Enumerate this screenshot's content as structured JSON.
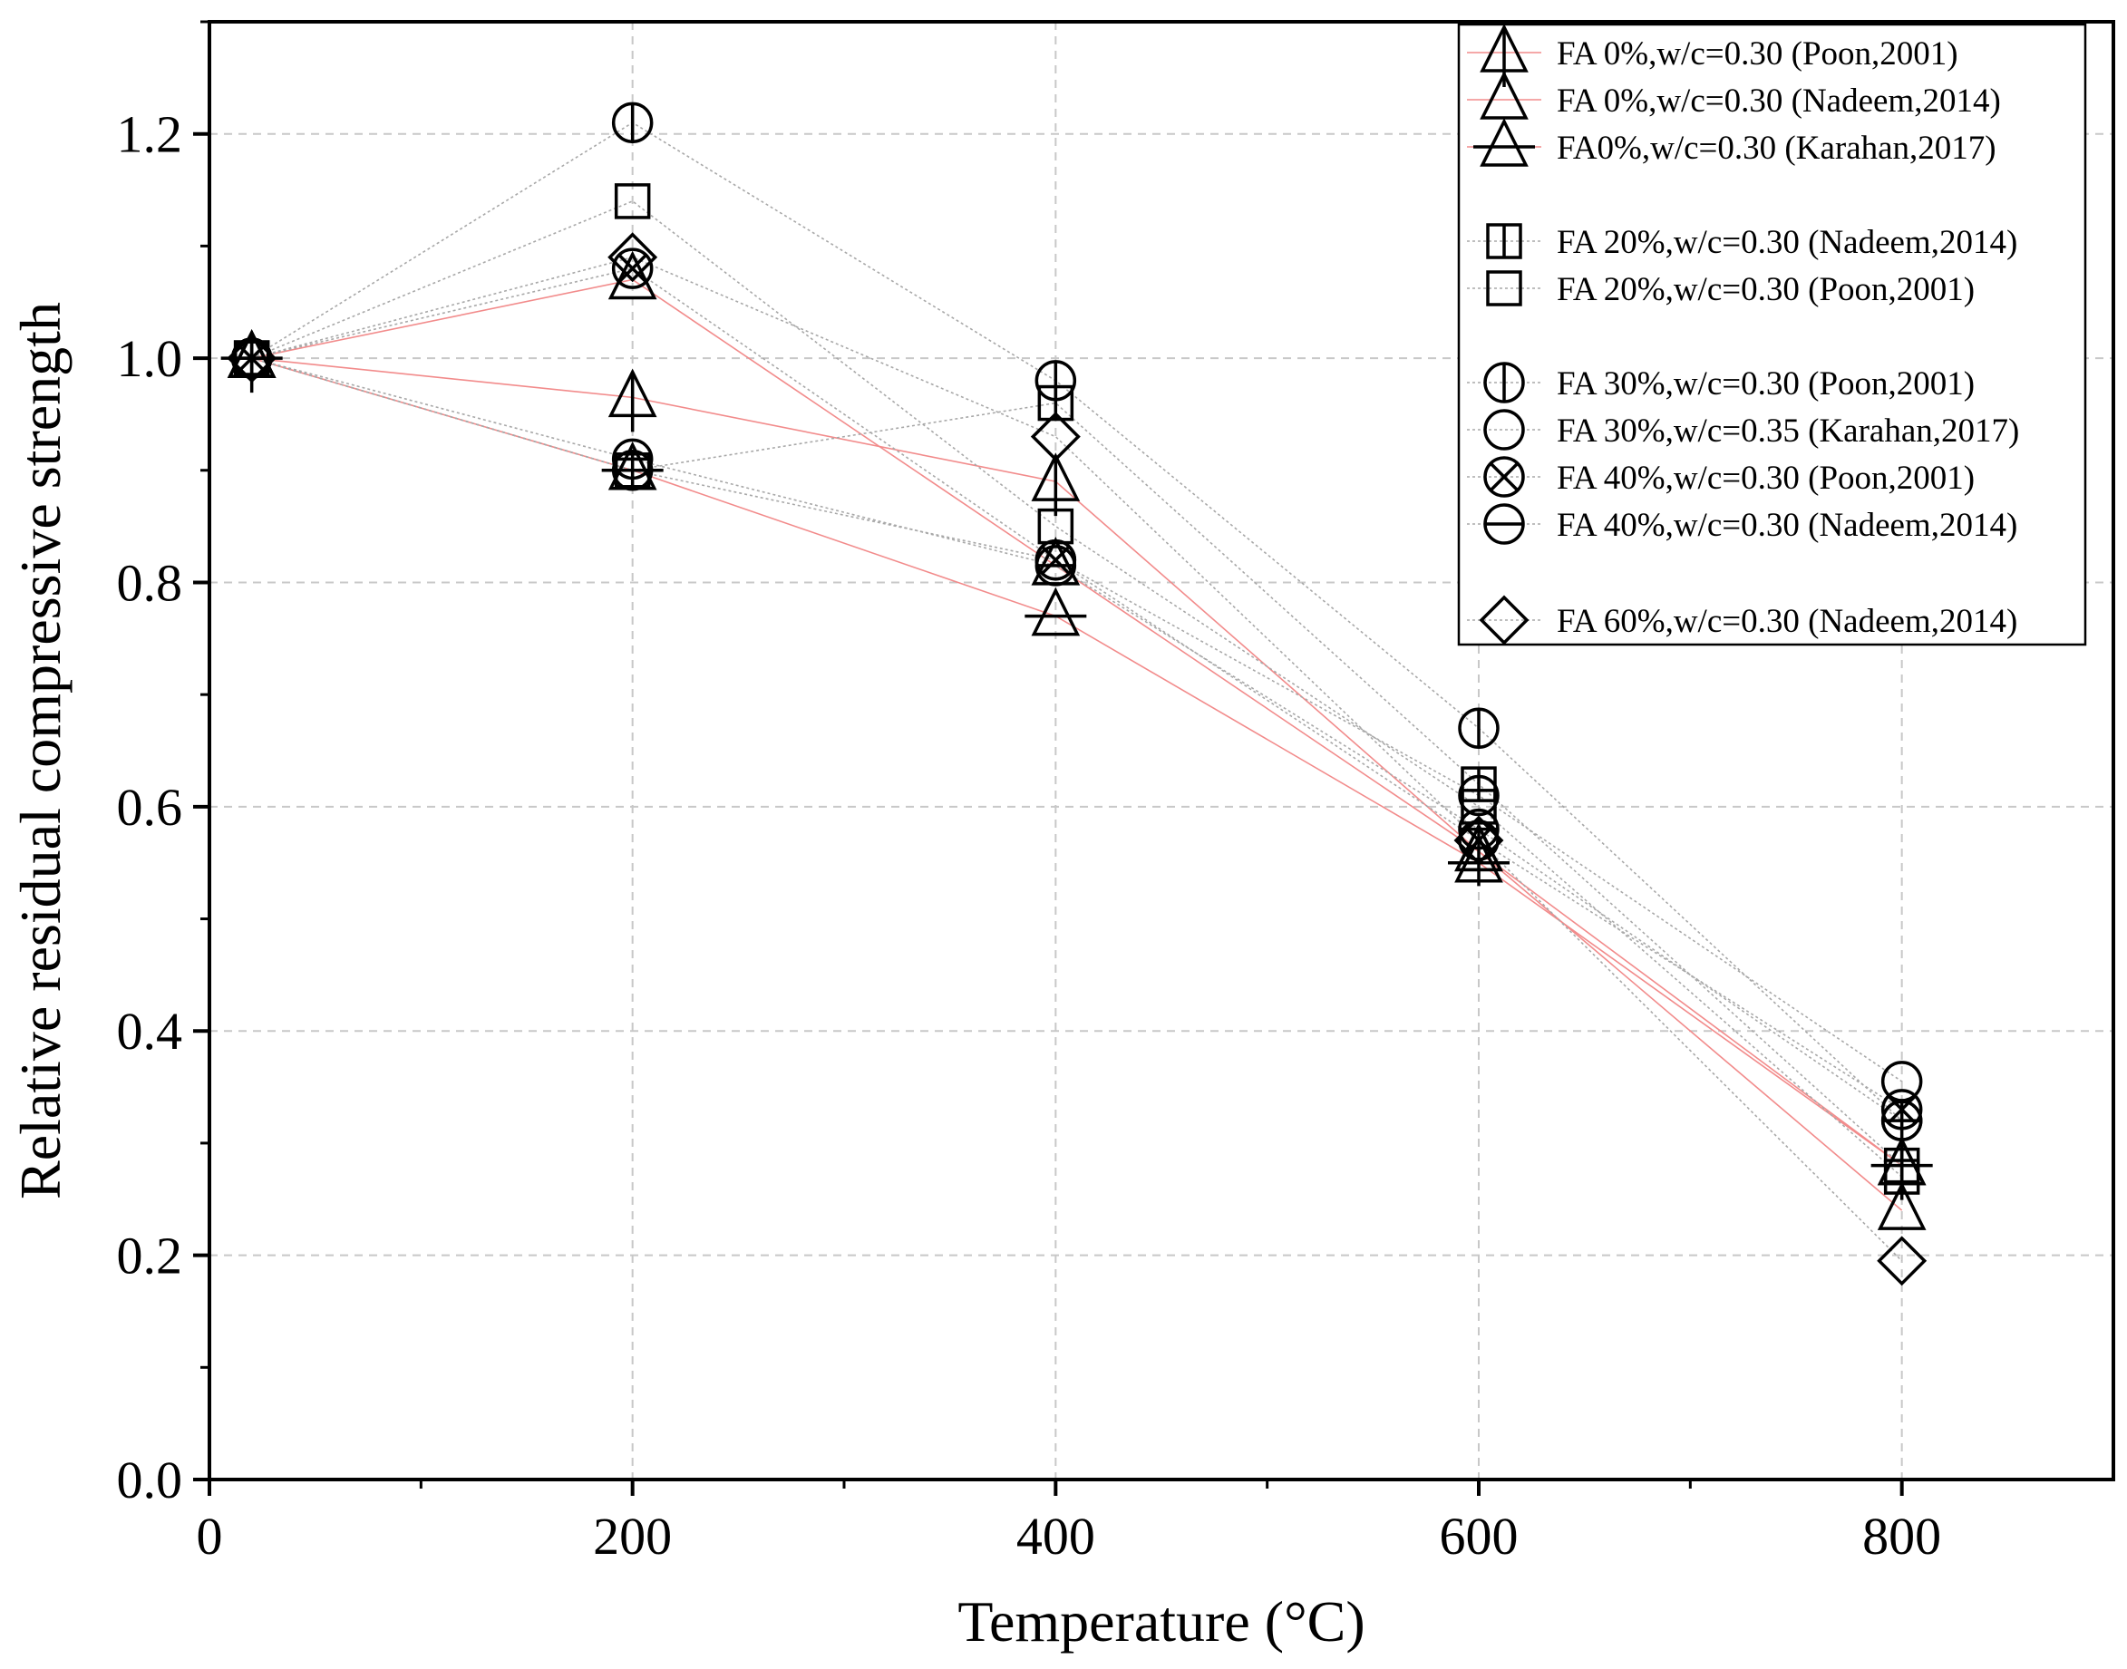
{
  "chart_data": {
    "type": "scatter",
    "title": "",
    "xlabel": "Temperature (°C)",
    "ylabel": "Relative residual compressive strength",
    "xlim": [
      0,
      900
    ],
    "ylim": [
      0,
      1.3
    ],
    "xticks": [
      0,
      200,
      400,
      600,
      800
    ],
    "xtick_labels": [
      "0",
      "200",
      "400",
      "600",
      "800"
    ],
    "yticks": [
      0,
      0.2,
      0.4,
      0.6,
      0.8,
      1.0,
      1.2
    ],
    "ytick_labels": [
      "0.0",
      "0.2",
      "0.4",
      "0.6",
      "0.8",
      "1.0",
      "1.2"
    ],
    "grid": true,
    "legend_position": "top-right",
    "series": [
      {
        "name": "FA 0%,w/c=0.30 (Poon,2001)",
        "marker": "triangle-vbar",
        "line_color": "#f28b8b",
        "x": [
          20,
          200,
          400,
          600,
          800
        ],
        "values": [
          1.0,
          0.965,
          0.89,
          0.56,
          0.28
        ]
      },
      {
        "name": "FA 0%,w/c=0.30 (Nadeem,2014)",
        "marker": "triangle",
        "line_color": "#f28b8b",
        "x": [
          20,
          200,
          400,
          600,
          800
        ],
        "values": [
          1.0,
          1.07,
          0.815,
          0.56,
          0.24
        ]
      },
      {
        "name": "FA0%,w/c=0.30 (Karahan,2017)",
        "marker": "triangle-hbar",
        "line_color": "#f28b8b",
        "x": [
          20,
          200,
          400,
          600,
          800
        ],
        "values": [
          1.0,
          0.9,
          0.77,
          0.55,
          0.28
        ]
      },
      {
        "name": "FA 20%,w/c=0.30 (Nadeem,2014)",
        "marker": "square-vbar",
        "line_color": "#a8a8a8",
        "x": [
          20,
          200,
          400,
          600,
          800
        ],
        "values": [
          1.0,
          0.9,
          0.96,
          0.62,
          0.28
        ]
      },
      {
        "name": "FA 20%,w/c=0.30 (Poon,2001)",
        "marker": "square",
        "line_color": "#a8a8a8",
        "x": [
          20,
          200,
          400,
          600,
          800
        ],
        "values": [
          1.0,
          1.14,
          0.85,
          0.6,
          0.27
        ]
      },
      {
        "name": "FA 30%,w/c=0.30 (Poon,2001)",
        "marker": "circle-vbar",
        "line_color": "#a8a8a8",
        "x": [
          20,
          200,
          400,
          600,
          800
        ],
        "values": [
          1.0,
          1.21,
          0.98,
          0.67,
          0.32
        ]
      },
      {
        "name": "FA 30%,w/c=0.35 (Karahan,2017)",
        "marker": "circle",
        "line_color": "#a8a8a8",
        "x": [
          20,
          200,
          400,
          600,
          800
        ],
        "values": [
          1.0,
          0.9,
          0.82,
          0.61,
          0.355
        ]
      },
      {
        "name": "FA 40%,w/c=0.30 (Poon,2001)",
        "marker": "circle-x",
        "line_color": "#a8a8a8",
        "x": [
          20,
          200,
          400,
          600,
          800
        ],
        "values": [
          1.0,
          1.08,
          0.82,
          0.57,
          0.33
        ]
      },
      {
        "name": "FA 40%,w/c=0.30 (Nadeem,2014)",
        "marker": "circle-hbar",
        "line_color": "#a8a8a8",
        "x": [
          20,
          200,
          400,
          600,
          800
        ],
        "values": [
          1.0,
          0.91,
          0.815,
          0.58,
          0.32
        ]
      },
      {
        "name": "FA 60%,w/c=0.30 (Nadeem,2014)",
        "marker": "diamond",
        "line_color": "#a8a8a8",
        "x": [
          20,
          200,
          400,
          600,
          800
        ],
        "values": [
          1.0,
          1.09,
          0.93,
          0.57,
          0.195
        ]
      }
    ]
  }
}
